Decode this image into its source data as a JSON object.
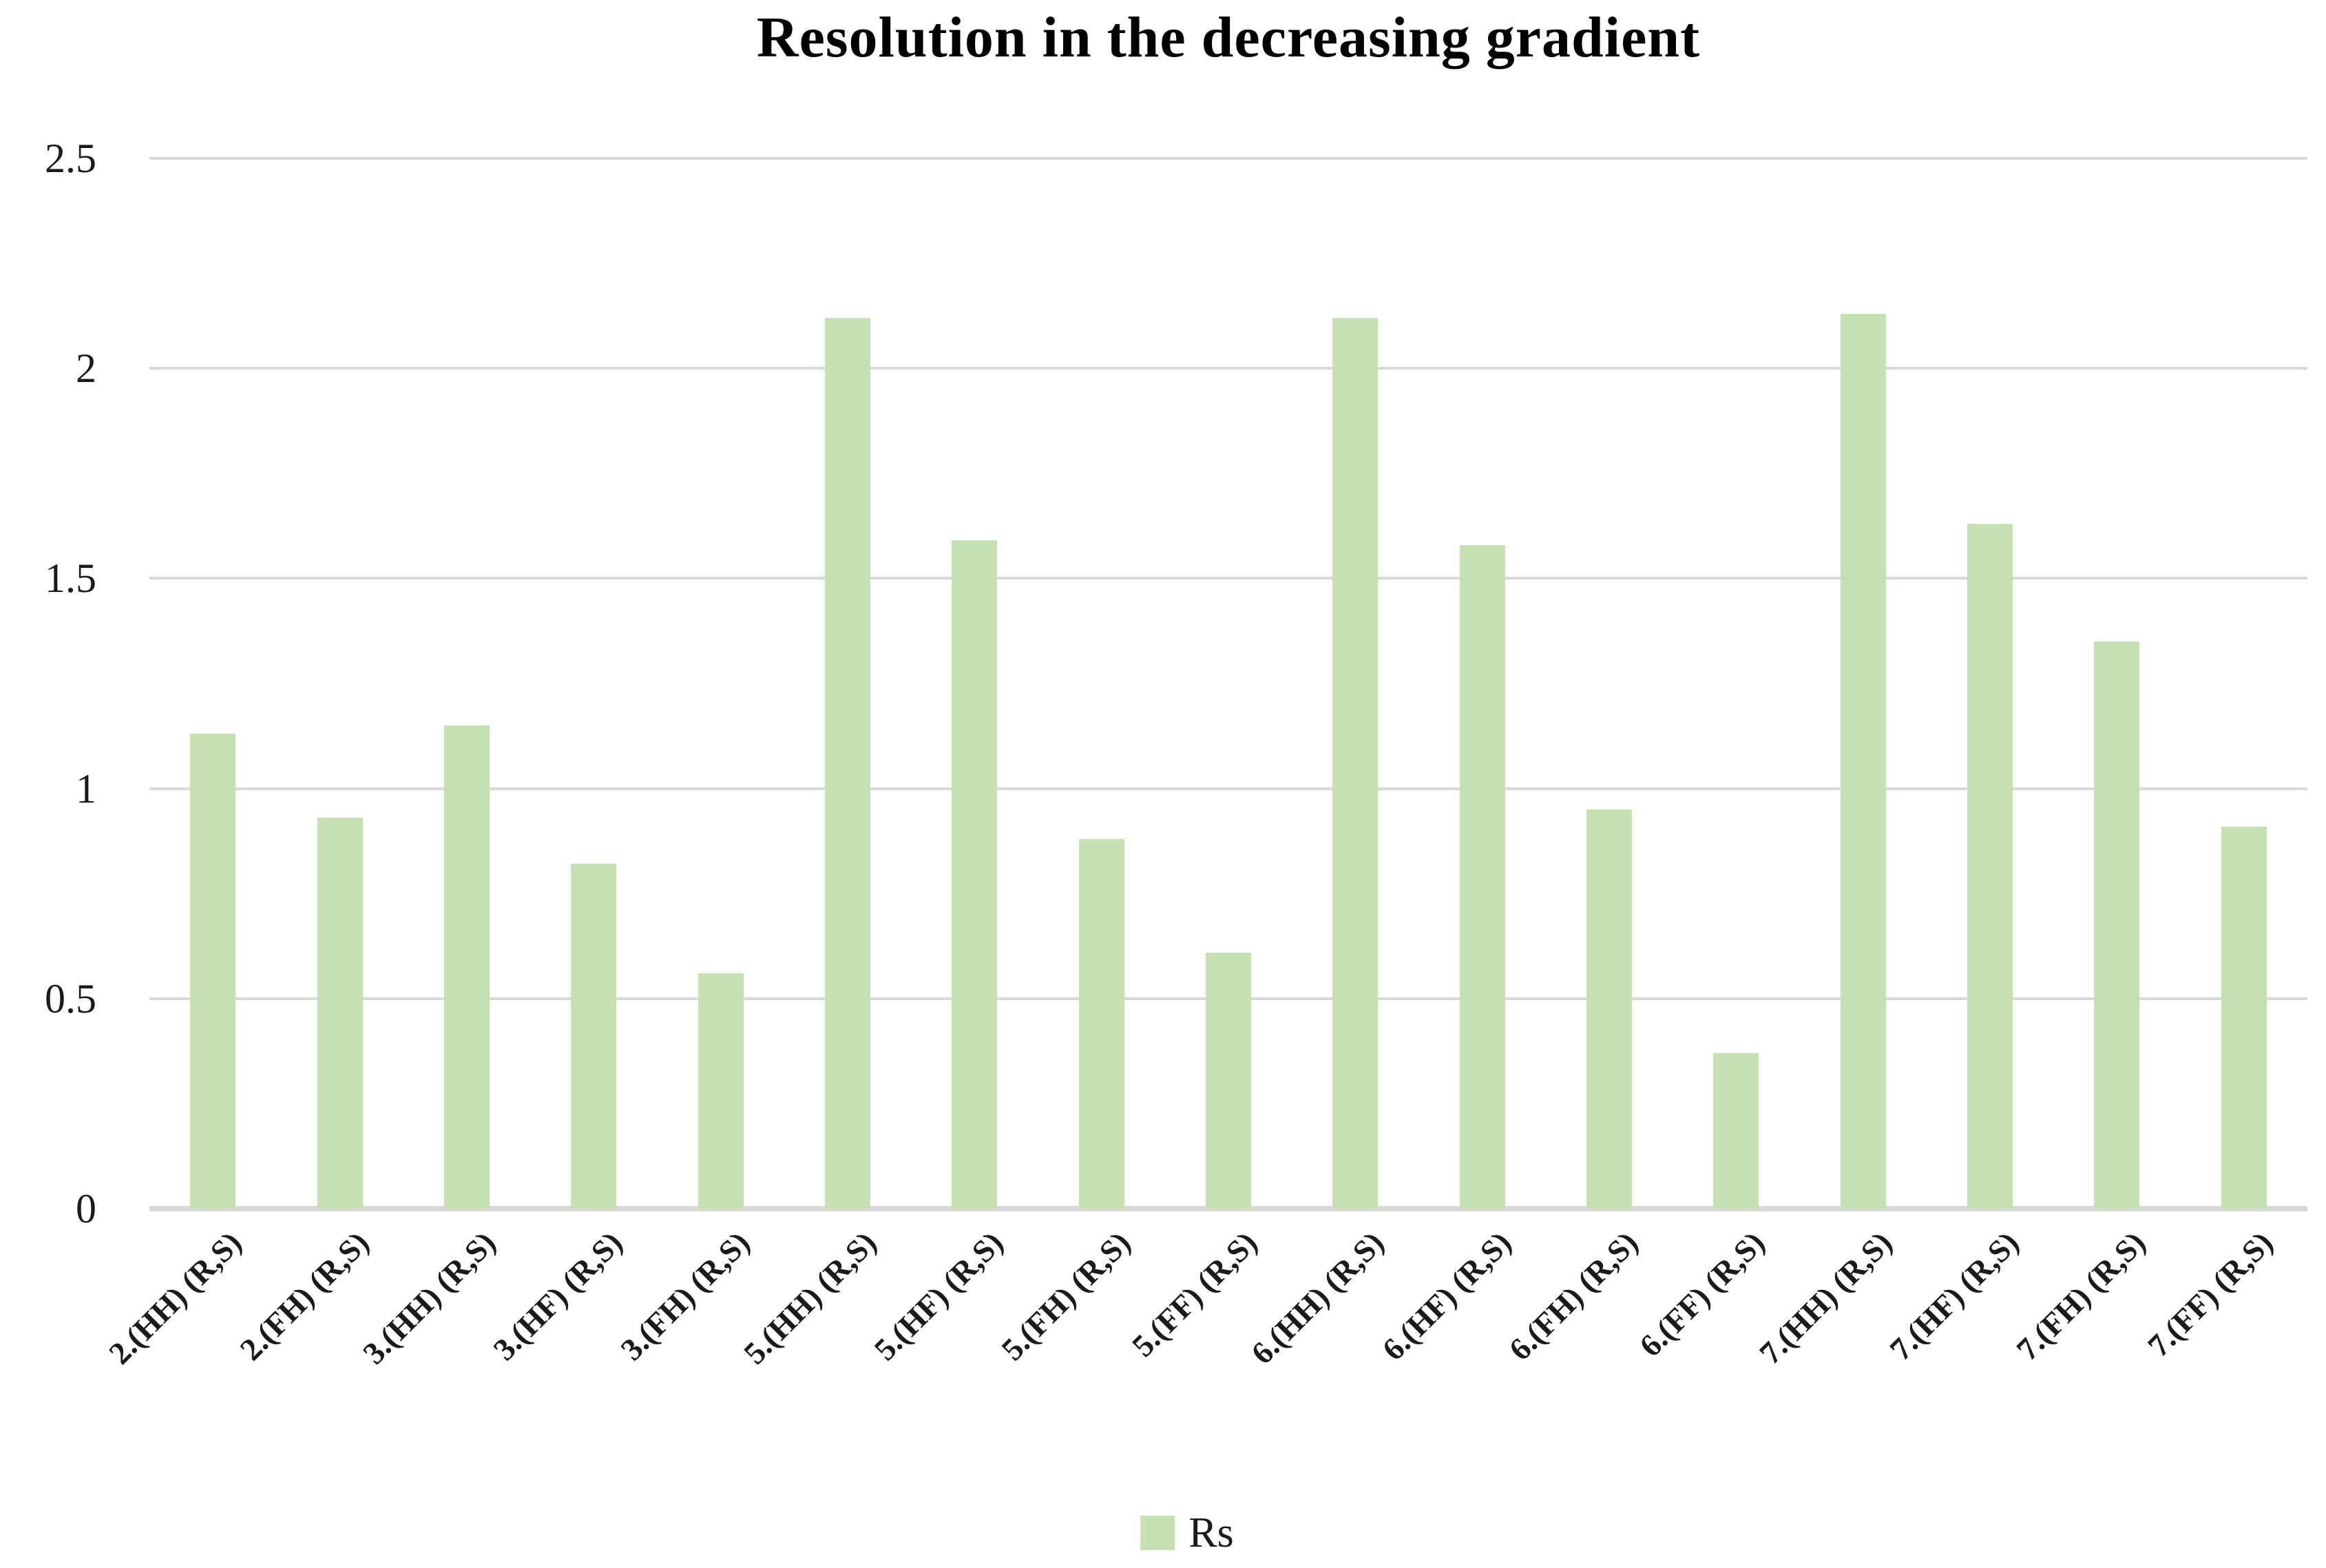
{
  "title": "Resolution in the decreasing gradient",
  "legend": {
    "label": "Rs"
  },
  "colors": {
    "bar": "#c6e0b4",
    "gridline": "#d9d9d9",
    "axis_line": "#d9d9d9",
    "text": "#1a1a1a"
  },
  "y_axis": {
    "tick_labels": [
      "2.5",
      "2",
      "1.5",
      "1",
      "0.5",
      "0"
    ]
  },
  "chart_data": {
    "type": "bar",
    "title": "Resolution in the decreasing gradient",
    "categories": [
      "2.(HH) (R,S)",
      "2.(FH) (R,S)",
      "3.(HH) (R,S)",
      "3.(HF) (R,S)",
      "3.(FH) (R,S)",
      "5.(HH) (R,S)",
      "5.(HF) (R,S)",
      "5.(FH) (R,S)",
      "5.(FF) (R,S)",
      "6.(HH) (R,S)",
      "6.(HF) (R,S)",
      "6.(FH) (R,S)",
      "6.(FF) (R,S)",
      "7.(HH) (R,S)",
      "7.(HF) (R,S)",
      "7.(FH) (R,S)",
      "7.(FF) (R,S)"
    ],
    "series": [
      {
        "name": "Rs",
        "values": [
          1.13,
          0.93,
          1.15,
          0.82,
          0.56,
          2.12,
          1.59,
          0.88,
          0.61,
          2.12,
          1.58,
          0.95,
          0.37,
          2.13,
          1.63,
          1.35,
          0.91
        ]
      }
    ],
    "xlabel": "",
    "ylabel": "",
    "ylim": [
      0,
      2.5
    ],
    "yticks": [
      2.5,
      2,
      1.5,
      1,
      0.5,
      0
    ],
    "grid": true,
    "legend_position": "bottom"
  }
}
